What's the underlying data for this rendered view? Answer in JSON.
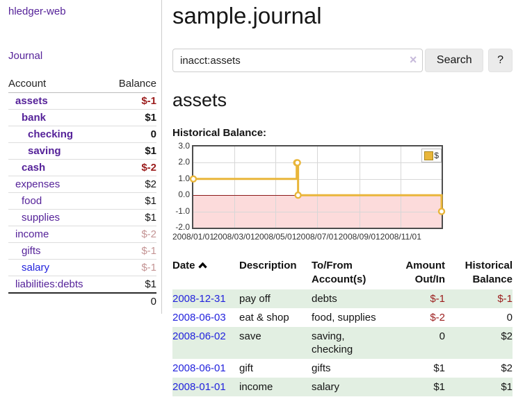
{
  "sidebar": {
    "app_title": "hledger-web",
    "journal_link": "Journal",
    "accounts_table": {
      "account_header": "Account",
      "balance_header": "Balance",
      "rows": [
        {
          "account": "assets",
          "balance": "$-1",
          "level": 1,
          "bold": true,
          "balance_style": "negative"
        },
        {
          "account": "bank",
          "balance": "$1",
          "level": 2,
          "bold": true,
          "balance_style": "normal"
        },
        {
          "account": "checking",
          "balance": "0",
          "level": 3,
          "bold": true,
          "balance_style": "normal"
        },
        {
          "account": "saving",
          "balance": "$1",
          "level": 3,
          "bold": true,
          "balance_style": "normal"
        },
        {
          "account": "cash",
          "balance": "$-2",
          "level": 2,
          "bold": true,
          "balance_style": "negative"
        },
        {
          "account": "expenses",
          "balance": "$2",
          "level": 1,
          "bold": false,
          "balance_style": "normal"
        },
        {
          "account": "food",
          "balance": "$1",
          "level": 2,
          "bold": false,
          "balance_style": "normal"
        },
        {
          "account": "supplies",
          "balance": "$1",
          "level": 2,
          "bold": false,
          "balance_style": "normal"
        },
        {
          "account": "income",
          "balance": "$-2",
          "level": 1,
          "bold": false,
          "balance_style": "negative-faded"
        },
        {
          "account": "gifts",
          "balance": "$-1",
          "level": 2,
          "bold": false,
          "balance_style": "negative-faded"
        },
        {
          "account": "salary",
          "balance": "$-1",
          "level": 2,
          "bold": false,
          "balance_style": "negative-faded",
          "link_style": "blue"
        },
        {
          "account": "liabilities:debts",
          "balance": "$1",
          "level": 1,
          "bold": false,
          "balance_style": "normal"
        }
      ],
      "total": "0"
    }
  },
  "main": {
    "page_title": "sample.journal",
    "search": {
      "query": "inacct:assets",
      "clear_icon": "×",
      "search_button": "Search",
      "help_button": "?"
    },
    "account_heading": "assets",
    "chart_heading": "Historical Balance:",
    "register_table": {
      "columns": [
        "Date",
        "Description",
        "To/From Account(s)",
        "Amount Out/In",
        "Historical Balance"
      ],
      "rows": [
        {
          "date": "2008-12-31",
          "description": "pay off",
          "accounts": "debts",
          "amount": "$-1",
          "balance": "$-1",
          "amount_negative": true,
          "balance_negative": true
        },
        {
          "date": "2008-06-03",
          "description": "eat & shop",
          "accounts": "food, supplies",
          "amount": "$-2",
          "balance": "0",
          "amount_negative": true,
          "balance_negative": false
        },
        {
          "date": "2008-06-02",
          "description": "save",
          "accounts": "saving, checking",
          "amount": "0",
          "balance": "$2",
          "amount_negative": false,
          "balance_negative": false
        },
        {
          "date": "2008-06-01",
          "description": "gift",
          "accounts": "gifts",
          "amount": "$1",
          "balance": "$2",
          "amount_negative": false,
          "balance_negative": false
        },
        {
          "date": "2008-01-01",
          "description": "income",
          "accounts": "salary",
          "amount": "$1",
          "balance": "$1",
          "amount_negative": false,
          "balance_negative": false
        }
      ]
    }
  },
  "chart_data": {
    "type": "line",
    "title": "Historical Balance:",
    "legend": "$",
    "step": true,
    "points": [
      {
        "date": "2008-01-01",
        "value": 1
      },
      {
        "date": "2008-06-01",
        "value": 2
      },
      {
        "date": "2008-06-02",
        "value": 2
      },
      {
        "date": "2008-06-03",
        "value": 0
      },
      {
        "date": "2008-12-31",
        "value": -1
      }
    ],
    "x_range": [
      "2008-01-01",
      "2008-12-31"
    ],
    "ylim": [
      -2,
      3
    ],
    "yticks": [
      "3.0",
      "2.0",
      "1.0",
      "0.0",
      "-1.0",
      "-2.0"
    ],
    "xticks": [
      "2008/01/01",
      "2008/03/01",
      "2008/05/01",
      "2008/07/01",
      "2008/09/01",
      "2008/11/01"
    ],
    "grid": true,
    "legend_position": "top-right",
    "colors": {
      "line": "#e9b63a",
      "marker_fill": "#ffffff",
      "negative_region": "#fcdbdb",
      "zero_line": "#8b1a1a",
      "grid": "#d7d7d7",
      "border": "#4d4d4d"
    }
  }
}
